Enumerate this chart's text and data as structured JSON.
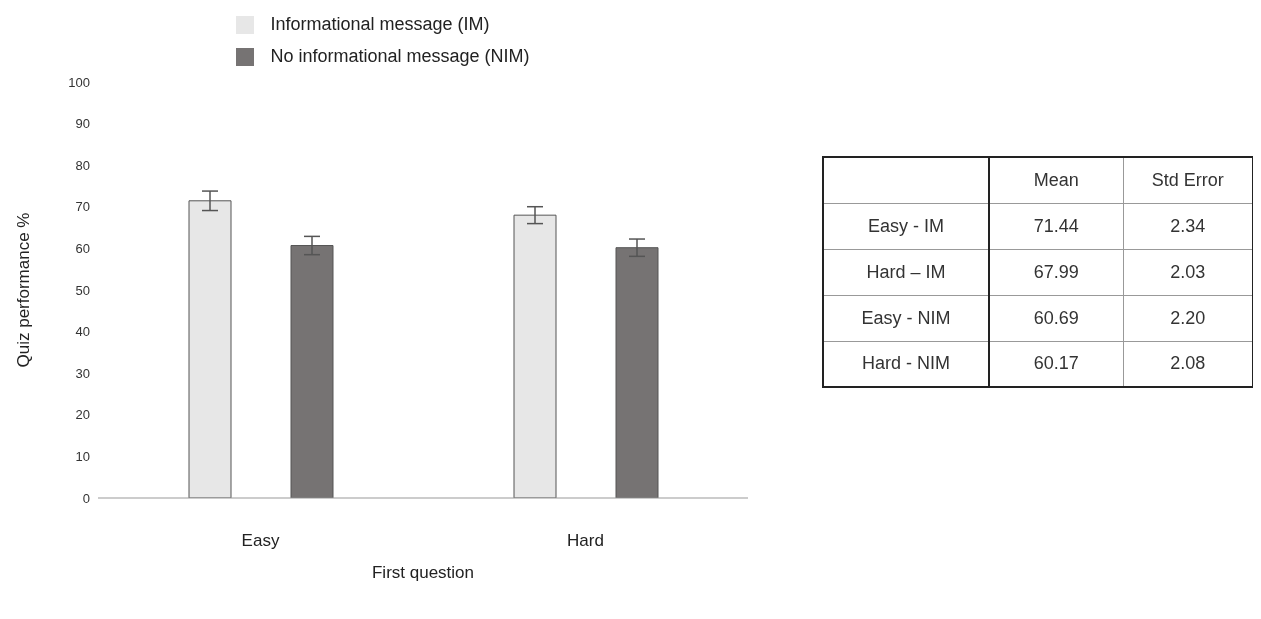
{
  "chart_data": [
    {
      "type": "bar",
      "categories": [
        "Easy",
        "Hard"
      ],
      "xlabel": "First question",
      "ylabel": "Quiz performance %",
      "ylim": [
        0,
        100
      ],
      "yticks": [
        0,
        10,
        20,
        30,
        40,
        50,
        60,
        70,
        80,
        90,
        100
      ],
      "grid": false,
      "legend": "top",
      "series": [
        {
          "name": "Informational message (IM)",
          "color": "#e7e7e7",
          "values": [
            71.44,
            67.99
          ],
          "errors": [
            2.34,
            2.03
          ]
        },
        {
          "name": "No informational message (NIM)",
          "color": "#767373",
          "values": [
            60.69,
            60.17
          ],
          "errors": [
            2.2,
            2.08
          ]
        }
      ]
    },
    {
      "type": "other",
      "annotations": [
        "Mean",
        "Std Error",
        "Easy - IM",
        "71.44",
        "2.34",
        "Hard – IM",
        "67.99",
        "2.03",
        "Easy - NIM",
        "60.69",
        "2.20",
        "Hard - NIM",
        "60.17",
        "2.08"
      ]
    }
  ]
}
